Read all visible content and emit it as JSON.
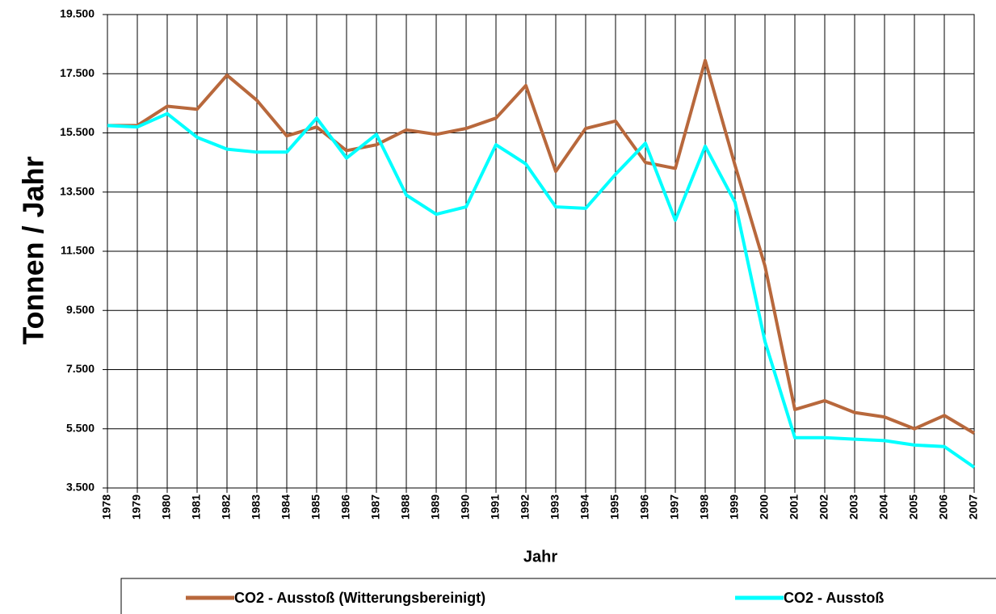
{
  "chart_data": {
    "type": "line",
    "x_label": "Jahr",
    "y_label": "Tonnen / Jahr",
    "categories": [
      "1978",
      "1979",
      "1980",
      "1981",
      "1982",
      "1983",
      "1984",
      "1985",
      "1986",
      "1987",
      "1988",
      "1989",
      "1990",
      "1991",
      "1992",
      "1993",
      "1994",
      "1995",
      "1996",
      "1997",
      "1998",
      "1999",
      "2000",
      "2001",
      "2002",
      "2003",
      "2004",
      "2005",
      "2006",
      "2007"
    ],
    "series": [
      {
        "name": "CO2 - Ausstoß (Witterungsbereinigt)",
        "color": "#b8683c",
        "values": [
          15750,
          15750,
          16400,
          16300,
          17450,
          16600,
          15400,
          15700,
          14900,
          15100,
          15600,
          15450,
          15650,
          16000,
          17100,
          14200,
          15650,
          15900,
          14500,
          14300,
          17950,
          14400,
          11000,
          6150,
          6450,
          6050,
          5900,
          5500,
          5950,
          5350
        ]
      },
      {
        "name": "CO2 - Ausstoß",
        "color": "#00ffff",
        "values": [
          15750,
          15700,
          16150,
          15350,
          14950,
          14850,
          14850,
          16000,
          14650,
          15450,
          13400,
          12750,
          13000,
          15100,
          14450,
          13000,
          12950,
          14100,
          15150,
          12550,
          15050,
          13150,
          8450,
          5200,
          5200,
          5150,
          5100,
          4950,
          4900,
          4200
        ]
      }
    ],
    "ylim": [
      3500,
      19500
    ],
    "yticks": [
      {
        "value": 3500,
        "label": "3.500"
      },
      {
        "value": 5500,
        "label": "5.500"
      },
      {
        "value": 7500,
        "label": "7.500"
      },
      {
        "value": 9500,
        "label": "9.500"
      },
      {
        "value": 11500,
        "label": "11.500"
      },
      {
        "value": 13500,
        "label": "13.500"
      },
      {
        "value": 15500,
        "label": "15.500"
      },
      {
        "value": 17500,
        "label": "17.500"
      },
      {
        "value": 19500,
        "label": "19.500"
      }
    ],
    "grid": true,
    "legend": "bottom"
  }
}
